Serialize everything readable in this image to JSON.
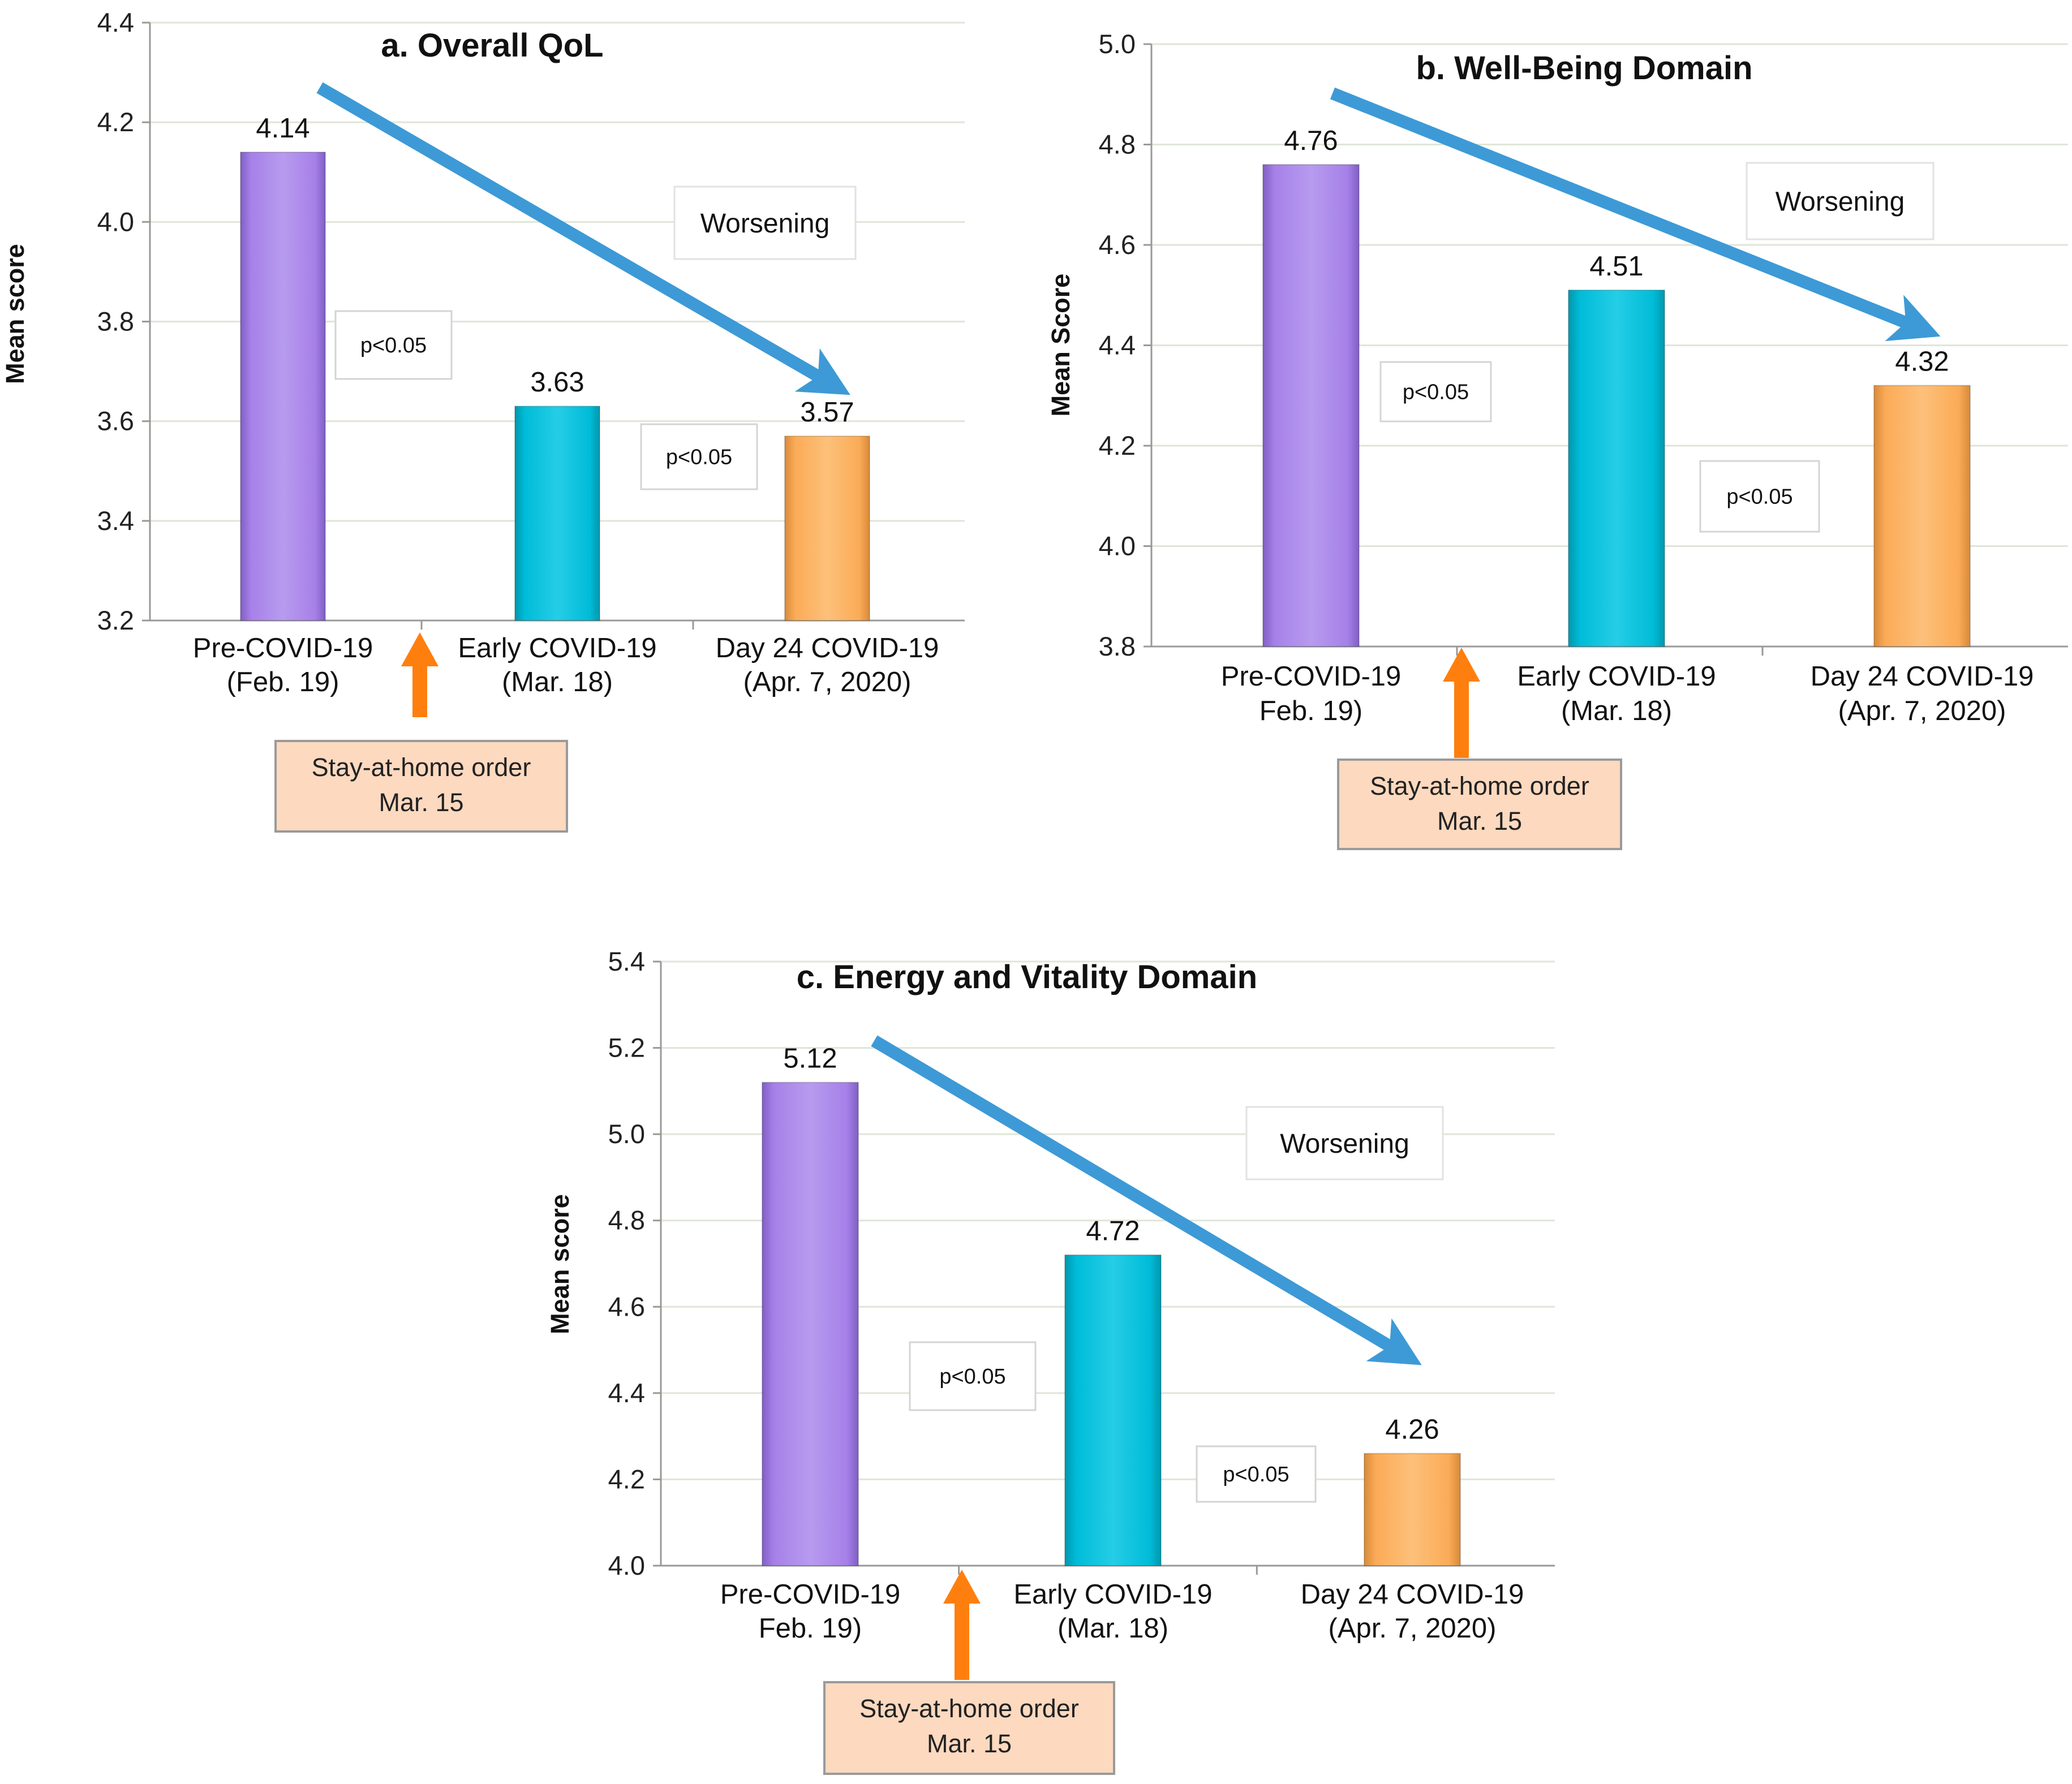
{
  "colors": {
    "bar_pre": "#a680e8",
    "bar_early": "#00bcd8",
    "bar_day24": "#fbab57",
    "trend_arrow": "#3d9ad6",
    "order_arrow": "#ff7f0e",
    "order_box_fill": "#fcd9bf",
    "order_box_stroke": "#9a9a9a",
    "grid": "#dfe6d8",
    "axis": "#999999"
  },
  "chart_data": [
    {
      "type": "bar",
      "title": "a. Overall QoL",
      "ylabel": "Mean score",
      "xlabel": "",
      "ylim": [
        3.2,
        4.4
      ],
      "yticks": [
        "3.2",
        "3.4",
        "3.6",
        "3.8",
        "4.0",
        "4.2",
        "4.4"
      ],
      "grid": true,
      "categories": [
        {
          "line1": "Pre-COVID-19",
          "line2": "(Feb. 19)"
        },
        {
          "line1": "Early COVID-19",
          "line2": "(Mar. 18)"
        },
        {
          "line1": "Day 24 COVID-19",
          "line2": "(Apr. 7, 2020)"
        }
      ],
      "values": [
        4.14,
        3.63,
        3.57
      ],
      "value_labels": [
        "4.14",
        "3.63",
        "3.57"
      ],
      "trend_label": "Worsening",
      "p_labels": [
        "p<0.05",
        "p<0.05"
      ],
      "annotation": {
        "line1": "Stay-at-home order",
        "line2": "Mar. 15"
      }
    },
    {
      "type": "bar",
      "title": "b. Well-Being Domain",
      "ylabel": "Mean Score",
      "xlabel": "",
      "ylim": [
        3.8,
        5.0
      ],
      "yticks": [
        "3.8",
        "4.0",
        "4.2",
        "4.4",
        "4.6",
        "4.8",
        "5.0"
      ],
      "grid": true,
      "categories": [
        {
          "line1": "Pre-COVID-19",
          "line2": "Feb. 19)"
        },
        {
          "line1": "Early COVID-19",
          "line2": "(Mar. 18)"
        },
        {
          "line1": "Day 24 COVID-19",
          "line2": "(Apr. 7, 2020)"
        }
      ],
      "values": [
        4.76,
        4.51,
        4.32
      ],
      "value_labels": [
        "4.76",
        "4.51",
        "4.32"
      ],
      "trend_label": "Worsening",
      "p_labels": [
        "p<0.05",
        "p<0.05"
      ],
      "annotation": {
        "line1": "Stay-at-home order",
        "line2": "Mar. 15"
      }
    },
    {
      "type": "bar",
      "title": "c. Energy and Vitality Domain",
      "ylabel": "Mean score",
      "xlabel": "",
      "ylim": [
        4.0,
        5.4
      ],
      "yticks": [
        "4.0",
        "4.2",
        "4.4",
        "4.6",
        "4.8",
        "5.0",
        "5.2",
        "5.4"
      ],
      "grid": true,
      "categories": [
        {
          "line1": "Pre-COVID-19",
          "line2": "Feb. 19)"
        },
        {
          "line1": "Early COVID-19",
          "line2": "(Mar. 18)"
        },
        {
          "line1": "Day 24 COVID-19",
          "line2": "(Apr. 7, 2020)"
        }
      ],
      "values": [
        5.12,
        4.72,
        4.26
      ],
      "value_labels": [
        "5.12",
        "4.72",
        "4.26"
      ],
      "trend_label": "Worsening",
      "p_labels": [
        "p<0.05",
        "p<0.05"
      ],
      "annotation": {
        "line1": "Stay-at-home order",
        "line2": "Mar. 15"
      }
    }
  ]
}
